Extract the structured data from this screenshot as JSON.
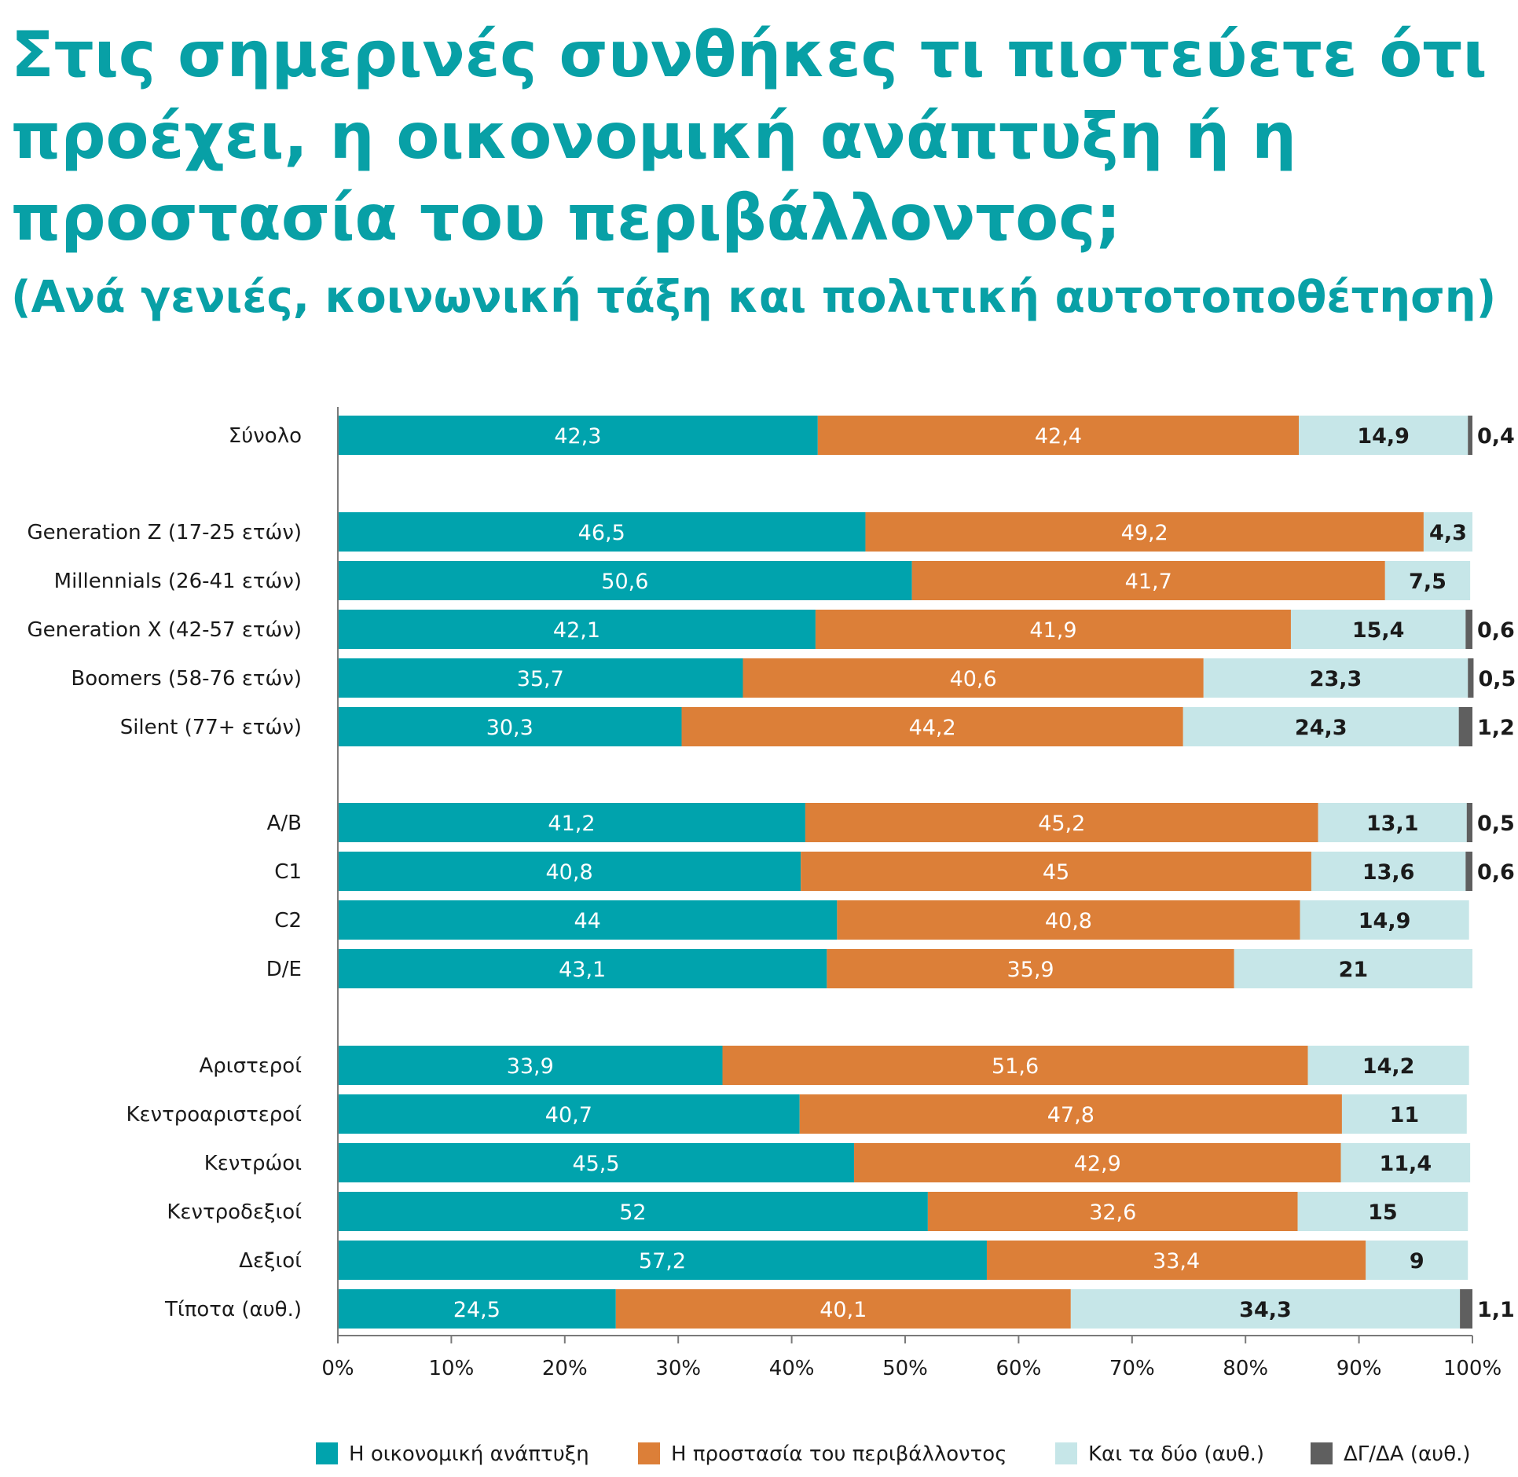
{
  "title": "Στις σημερινές συνθήκες τι πιστεύετε ότι προέχει, η οικονομική ανάπτυξη ή η προστασία του περιβάλλοντος;",
  "subtitle": "(Ανά γενιές, κοινωνική τάξη και πολιτική αυτοτοποθέτηση)",
  "chart_data": {
    "type": "bar",
    "orientation": "horizontal",
    "stacked": true,
    "categories": [
      "Σύνολο",
      "Generation Z (17-25 ετών)",
      "Millennials (26-41 ετών)",
      "Generation X (42-57 ετών)",
      "Boomers (58-76 ετών)",
      "Silent (77+ ετών)",
      "A/B",
      "C1",
      "C2",
      "D/E",
      "Αριστεροί",
      "Κεντροαριστεροί",
      "Κεντρώοι",
      "Κεντροδεξιοί",
      "Δεξιοί",
      "Τίποτα (αυθ.)"
    ],
    "groups": [
      [
        0
      ],
      [
        1,
        2,
        3,
        4,
        5
      ],
      [
        6,
        7,
        8,
        9
      ],
      [
        10,
        11,
        12,
        13,
        14,
        15
      ]
    ],
    "series": [
      {
        "name": "Η οικονομική ανάπτυξη",
        "color": "#00a3ad",
        "values": [
          42.3,
          46.5,
          50.6,
          42.1,
          35.7,
          30.3,
          41.2,
          40.8,
          44,
          43.1,
          33.9,
          40.7,
          45.5,
          52,
          57.2,
          24.5
        ],
        "labels": [
          "42,3",
          "46,5",
          "50,6",
          "42,1",
          "35,7",
          "30,3",
          "41,2",
          "40,8",
          "44",
          "43,1",
          "33,9",
          "40,7",
          "45,5",
          "52",
          "57,2",
          "24,5"
        ]
      },
      {
        "name": "Η προστασία του περιβάλλοντος",
        "color": "#dc7f38",
        "values": [
          42.4,
          49.2,
          41.7,
          41.9,
          40.6,
          44.2,
          45.2,
          45,
          40.8,
          35.9,
          51.6,
          47.8,
          42.9,
          32.6,
          33.4,
          40.1
        ],
        "labels": [
          "42,4",
          "49,2",
          "41,7",
          "41,9",
          "40,6",
          "44,2",
          "45,2",
          "45",
          "40,8",
          "35,9",
          "51,6",
          "47,8",
          "42,9",
          "32,6",
          "33,4",
          "40,1"
        ]
      },
      {
        "name": "Και τα δύο (αυθ.)",
        "color": "#c6e6e8",
        "values": [
          14.9,
          4.3,
          7.5,
          15.4,
          23.3,
          24.3,
          13.1,
          13.6,
          14.9,
          21,
          14.2,
          11,
          11.4,
          15,
          9,
          34.3
        ],
        "labels": [
          "14,9",
          "4,3",
          "7,5",
          "15,4",
          "23,3",
          "24,3",
          "13,1",
          "13,6",
          "14,9",
          "21",
          "14,2",
          "11",
          "11,4",
          "15",
          "9",
          "34,3"
        ]
      },
      {
        "name": "ΔΓ/ΔΑ (αυθ.)",
        "color": "#5f5f5f",
        "values": [
          0.4,
          0,
          0,
          0.6,
          0.5,
          1.2,
          0.5,
          0.6,
          0,
          0,
          0,
          0,
          0,
          0,
          0,
          1.1
        ],
        "labels": [
          "0,4",
          "",
          "",
          "0,6",
          "0,5",
          "1,2",
          "0,5",
          "0,6",
          "",
          "",
          "",
          "",
          "",
          "",
          "",
          "1,1"
        ]
      }
    ],
    "x_ticks": [
      "0%",
      "10%",
      "20%",
      "30%",
      "40%",
      "50%",
      "60%",
      "70%",
      "80%",
      "90%",
      "100%"
    ],
    "xlim": [
      0,
      100
    ],
    "grid": false,
    "legend_position": "bottom-right"
  }
}
